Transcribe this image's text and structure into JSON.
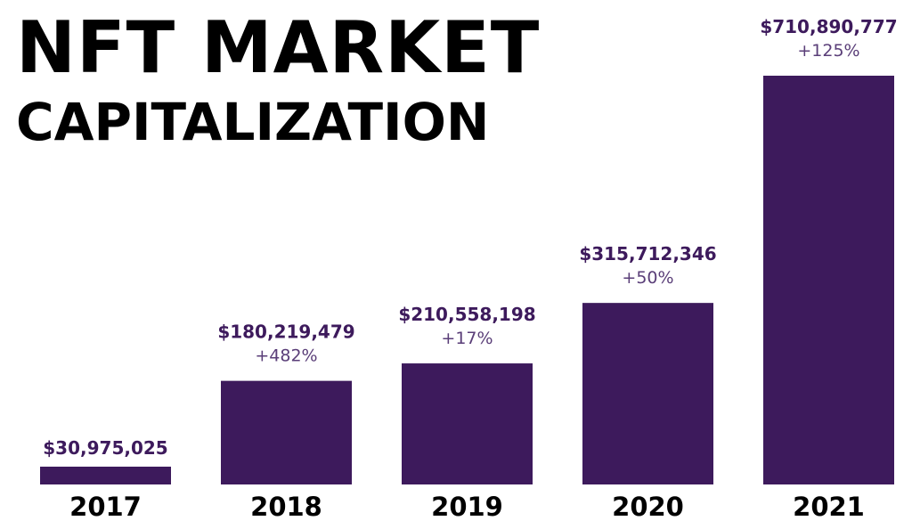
{
  "title_line_1": "NFT MARKET",
  "title_line_2": "CAPITALIZATION",
  "colors": {
    "bar": "#3d1a5c",
    "value_label": "#3d1a5c",
    "growth_label": "#5a3e78",
    "year_label": "#000000"
  },
  "chart_data": {
    "type": "bar",
    "title": "NFT MARKET CAPITALIZATION",
    "categories": [
      "2017",
      "2018",
      "2019",
      "2020",
      "2021"
    ],
    "values": [
      30975025,
      180219479,
      210558198,
      315712346,
      710890777
    ],
    "value_labels": [
      "$30,975,025",
      "$180,219,479",
      "$210,558,198",
      "$315,712,346",
      "$710,890,777"
    ],
    "growth_labels": [
      "",
      "+482%",
      "+17%",
      "+50%",
      "+125%"
    ],
    "xlabel": "",
    "ylabel": "",
    "ylim": [
      0,
      710890777
    ],
    "grid": false,
    "legend": "none"
  }
}
